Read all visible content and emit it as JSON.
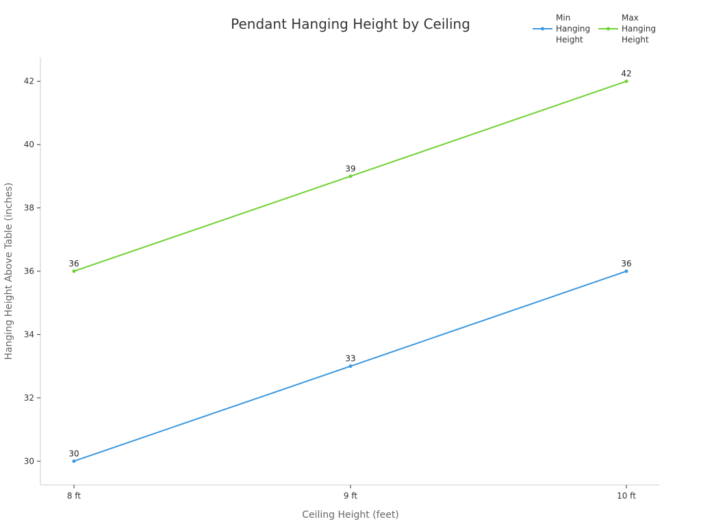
{
  "chart_data": {
    "type": "line",
    "title": "Pendant Hanging Height by Ceiling",
    "xlabel": "Ceiling Height (feet)",
    "ylabel": "Hanging Height Above Table (inches)",
    "categories": [
      "8 ft",
      "9 ft",
      "10 ft"
    ],
    "ylim": [
      29.25,
      42.75
    ],
    "yticks": [
      30,
      32,
      34,
      36,
      38,
      40,
      42
    ],
    "grid": false,
    "legend_position": "top-right",
    "series": [
      {
        "name": "Min Hanging Height",
        "name_lines": [
          "Min",
          "Hanging",
          "Height"
        ],
        "color": "#3b97de",
        "values": [
          30,
          33,
          36
        ]
      },
      {
        "name": "Max Hanging Height",
        "name_lines": [
          "Max",
          "Hanging",
          "Height"
        ],
        "color": "#6fd132",
        "values": [
          36,
          39,
          42
        ]
      }
    ]
  }
}
